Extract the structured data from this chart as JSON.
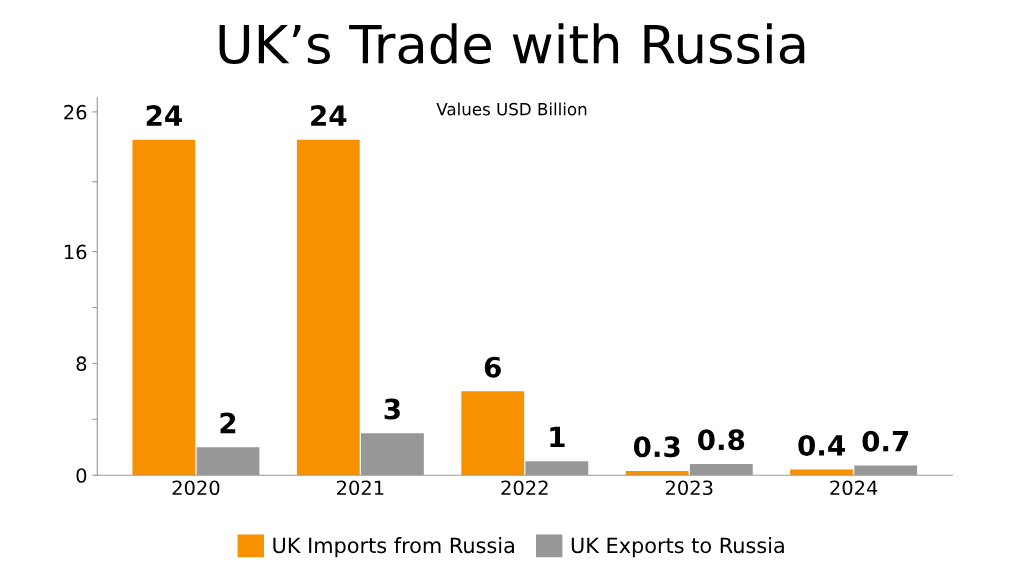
{
  "chart_data": {
    "type": "bar",
    "title": "UK’s Trade with Russia",
    "subtitle": "Values USD Billion",
    "categories": [
      "2020",
      "2021",
      "2022",
      "2023",
      "2024"
    ],
    "series": [
      {
        "name": "UK Imports from Russia",
        "color": "#f79100",
        "values": [
          24,
          24,
          6,
          0.3,
          0.4
        ]
      },
      {
        "name": "UK Exports to Russia",
        "color": "#979797",
        "values": [
          2,
          3,
          1,
          0.8,
          0.7
        ]
      }
    ],
    "data_labels": true,
    "ylim": [
      0,
      27
    ],
    "yticks": [
      0,
      {
        "value": 4,
        "label": null
      },
      8,
      {
        "value": 12,
        "label": null
      },
      16,
      {
        "value": 21,
        "label": null
      },
      26
    ],
    "grid": false,
    "legend": "bottom"
  }
}
